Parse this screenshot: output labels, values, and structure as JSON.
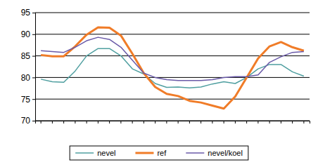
{
  "chart_data": {
    "type": "line",
    "categories": [
      null,
      null,
      null,
      null,
      null,
      null,
      null,
      null,
      null,
      null,
      null,
      null,
      null,
      null,
      null,
      null,
      null,
      null,
      null,
      null,
      null,
      null,
      null,
      null
    ],
    "series": [
      {
        "name": "nevel",
        "color": "#4f9fa0",
        "values": [
          79.6,
          79.0,
          78.9,
          81.5,
          85.0,
          86.7,
          86.7,
          85.0,
          82.0,
          80.8,
          78.6,
          77.7,
          77.8,
          77.6,
          77.8,
          78.5,
          79.0,
          78.6,
          80.0,
          82.0,
          83.0,
          83.0,
          81.3,
          80.3
        ]
      },
      {
        "name": "ref",
        "color": "#f07c28",
        "values": [
          85.2,
          84.9,
          84.9,
          87.2,
          89.9,
          91.6,
          91.5,
          89.7,
          85.5,
          81.0,
          77.8,
          76.2,
          75.7,
          74.6,
          74.2,
          73.5,
          72.8,
          75.6,
          80.0,
          84.4,
          87.2,
          88.2,
          87.0,
          86.2
        ]
      },
      {
        "name": "nevel/koel",
        "color": "#6a5aa8",
        "values": [
          86.2,
          86.0,
          85.8,
          87.0,
          88.5,
          89.3,
          88.8,
          87.0,
          84.0,
          81.0,
          80.0,
          79.5,
          79.3,
          79.3,
          79.3,
          79.5,
          80.0,
          80.2,
          80.2,
          80.6,
          83.5,
          84.8,
          85.8,
          86.0
        ]
      }
    ],
    "ylim": [
      70,
      95
    ],
    "yticks": [
      70,
      75,
      80,
      85,
      90,
      95
    ],
    "grid": true,
    "legend": "bottom",
    "tick_labels": "y"
  }
}
